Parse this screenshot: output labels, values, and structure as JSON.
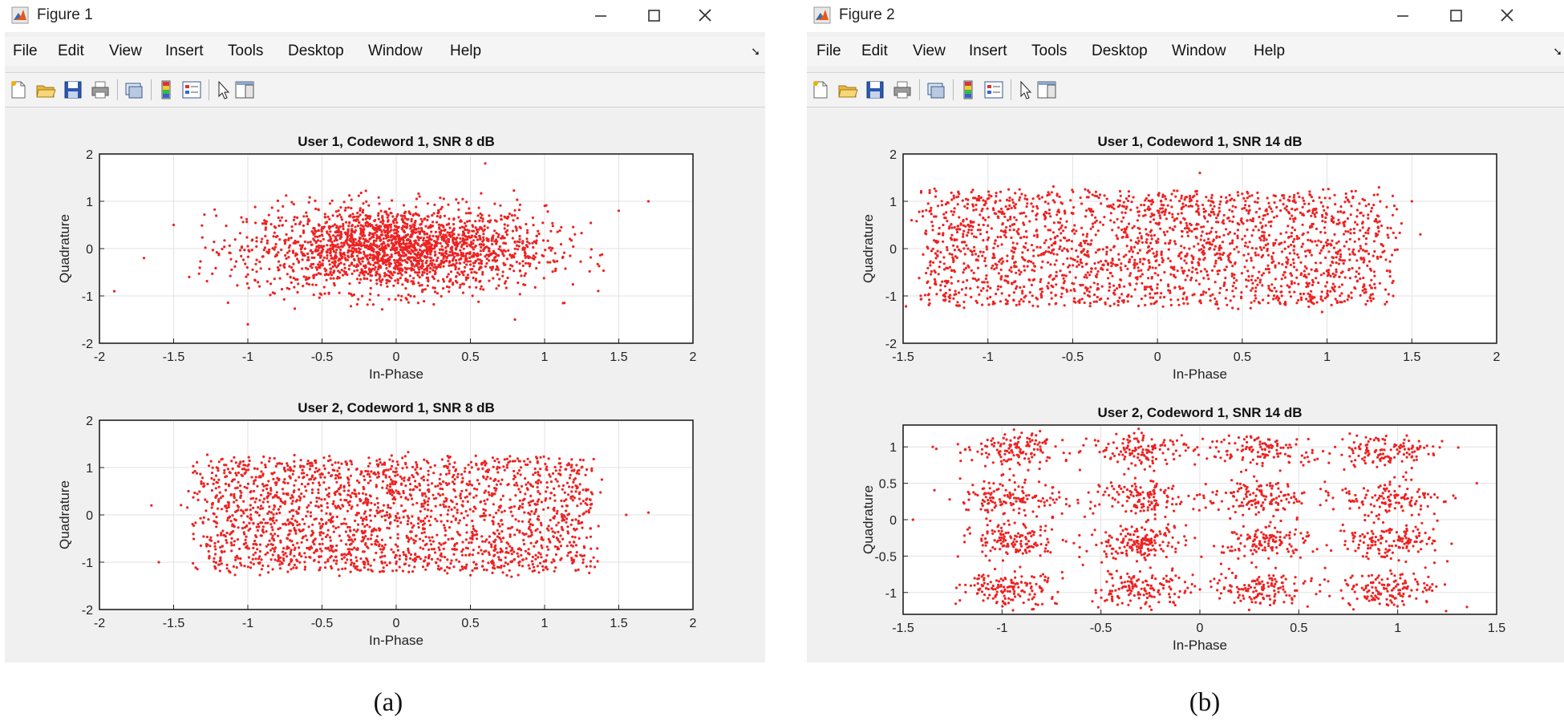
{
  "windows": [
    {
      "title": "Figure 1",
      "caption": "(a)",
      "menu": [
        "File",
        "Edit",
        "View",
        "Insert",
        "Tools",
        "Desktop",
        "Window",
        "Help"
      ],
      "axes": [
        {
          "title": "User 1, Codeword 1, SNR 8 dB",
          "xlabel": "In-Phase",
          "ylabel": "Quadrature",
          "xlim": [
            -2,
            2
          ],
          "ylim": [
            -2,
            2
          ],
          "xticks": [
            -2,
            -1.5,
            -1,
            -0.5,
            0,
            0.5,
            1,
            1.5,
            2
          ],
          "yticks": [
            -2,
            -1,
            0,
            1,
            2
          ],
          "xtick_labels": [
            "-2",
            "-1.5",
            "-1",
            "-0.5",
            "0",
            "0.5",
            "1",
            "1.5",
            "2"
          ],
          "ytick_labels": [
            "-2",
            "-1",
            "0",
            "1",
            "2"
          ]
        },
        {
          "title": "User 2, Codeword 1, SNR 8 dB",
          "xlabel": "In-Phase",
          "ylabel": "Quadrature",
          "xlim": [
            -2,
            2
          ],
          "ylim": [
            -2,
            2
          ],
          "xticks": [
            -2,
            -1.5,
            -1,
            -0.5,
            0,
            0.5,
            1,
            1.5,
            2
          ],
          "yticks": [
            -2,
            -1,
            0,
            1,
            2
          ],
          "xtick_labels": [
            "-2",
            "-1.5",
            "-1",
            "-0.5",
            "0",
            "0.5",
            "1",
            "1.5",
            "2"
          ],
          "ytick_labels": [
            "-2",
            "-1",
            "0",
            "1",
            "2"
          ]
        }
      ]
    },
    {
      "title": "Figure 2",
      "caption": "(b)",
      "menu": [
        "File",
        "Edit",
        "View",
        "Insert",
        "Tools",
        "Desktop",
        "Window",
        "Help"
      ],
      "axes": [
        {
          "title": "User 1, Codeword 1, SNR 14 dB",
          "xlabel": "In-Phase",
          "ylabel": "Quadrature",
          "xlim": [
            -1.5,
            2
          ],
          "ylim": [
            -2,
            2
          ],
          "xticks": [
            -1.5,
            -1,
            -0.5,
            0,
            0.5,
            1,
            1.5,
            2
          ],
          "yticks": [
            -2,
            -1,
            0,
            1,
            2
          ],
          "xtick_labels": [
            "-1.5",
            "-1",
            "-0.5",
            "0",
            "0.5",
            "1",
            "1.5",
            "2"
          ],
          "ytick_labels": [
            "-2",
            "-1",
            "0",
            "1",
            "2"
          ]
        },
        {
          "title": "User 2, Codeword 1, SNR 14 dB",
          "xlabel": "In-Phase",
          "ylabel": "Quadrature",
          "xlim": [
            -1.5,
            1.5
          ],
          "ylim": [
            -1.3,
            1.3
          ],
          "xticks": [
            -1.5,
            -1,
            -0.5,
            0,
            0.5,
            1,
            1.5
          ],
          "yticks": [
            -1,
            -0.5,
            0,
            0.5,
            1
          ],
          "xtick_labels": [
            "-1.5",
            "-1",
            "-0.5",
            "0",
            "0.5",
            "1",
            "1.5"
          ],
          "ytick_labels": [
            "-1",
            "-0.5",
            "0",
            "0.5",
            "1"
          ]
        }
      ]
    }
  ],
  "colors": {
    "marker": "#ee2222",
    "grid": "#e2e2e2",
    "axes_bg": "#ffffff",
    "frame": "#222222"
  },
  "chart_data": [
    {
      "type": "scatter",
      "title": "User 1, Codeword 1, SNR 8 dB",
      "xlabel": "In-Phase",
      "ylabel": "Quadrature",
      "xlim": [
        -2,
        2
      ],
      "ylim": [
        -2,
        2
      ],
      "grid": true,
      "description": "Dense cloud of noisy constellation points centred at origin",
      "bulk_x_range": [
        -1.4,
        1.4
      ],
      "bulk_y_range": [
        -1.3,
        1.3
      ],
      "outliers": [
        [
          -1.9,
          -0.9
        ],
        [
          -1.7,
          -0.2
        ],
        [
          -1.5,
          0.5
        ],
        [
          1.7,
          1.0
        ],
        [
          1.5,
          0.8
        ],
        [
          0.6,
          1.8
        ],
        [
          -1.0,
          -1.6
        ],
        [
          0.8,
          -1.5
        ]
      ]
    },
    {
      "type": "scatter",
      "title": "User 2, Codeword 1, SNR 8 dB",
      "xlabel": "In-Phase",
      "ylabel": "Quadrature",
      "xlim": [
        -2,
        2
      ],
      "ylim": [
        -2,
        2
      ],
      "grid": true,
      "description": "Rectangular cloud of points spanning in-phase -1.3..1.3, quadrature -1.2..1.2",
      "bulk_x_range": [
        -1.3,
        1.3
      ],
      "bulk_y_range": [
        -1.2,
        1.2
      ],
      "outliers": [
        [
          -1.65,
          0.2
        ],
        [
          -1.6,
          -1.0
        ],
        [
          1.55,
          0.0
        ],
        [
          1.7,
          0.05
        ],
        [
          -1.4,
          0.5
        ]
      ]
    },
    {
      "type": "scatter",
      "title": "User 1, Codeword 1, SNR 14 dB",
      "xlabel": "In-Phase",
      "ylabel": "Quadrature",
      "xlim": [
        -1.5,
        2
      ],
      "ylim": [
        -2,
        2
      ],
      "grid": true,
      "description": "Rectangular cloud of points spanning in-phase -1.35..1.35, quadrature -1.2..1.2",
      "bulk_x_range": [
        -1.35,
        1.35
      ],
      "bulk_y_range": [
        -1.2,
        1.2
      ],
      "outliers": [
        [
          1.5,
          1.0
        ],
        [
          1.55,
          0.3
        ],
        [
          -1.45,
          0.6
        ],
        [
          0.25,
          1.6
        ]
      ]
    },
    {
      "type": "scatter",
      "title": "User 2, Codeword 1, SNR 14 dB",
      "xlabel": "In-Phase",
      "ylabel": "Quadrature",
      "xlim": [
        -1.5,
        1.5
      ],
      "ylim": [
        -1.3,
        1.3
      ],
      "grid": true,
      "description": "Clustered constellation points grouped around a 4x4 grid",
      "cluster_centers_x": [
        -0.95,
        -0.3,
        0.3,
        0.95
      ],
      "cluster_centers_y": [
        -0.95,
        -0.3,
        0.3,
        0.95
      ],
      "outliers": [
        [
          -1.35,
          1.0
        ],
        [
          -1.45,
          0.0
        ],
        [
          1.4,
          0.5
        ],
        [
          1.35,
          -1.2
        ]
      ]
    }
  ]
}
